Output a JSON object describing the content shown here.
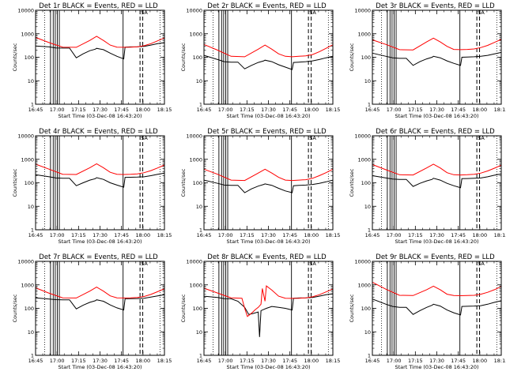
{
  "chart_data": {
    "type": "line",
    "layout": "3x3 grid",
    "x_tick_labels": [
      "16:45",
      "17:00",
      "17:15",
      "17:30",
      "17:45",
      "18:00",
      "18:15"
    ],
    "y_tick_labels": [
      "1",
      "10",
      "100",
      "1000",
      "10000"
    ],
    "x_range_minutes": [
      0,
      95
    ],
    "y_range": [
      1,
      10000
    ],
    "y_scale": "log",
    "ylabel": "Counts/sec",
    "xlabel": "Start Time (03-Dec-08 16:43:20)",
    "legend": [
      {
        "label": "BLACK = Events",
        "color": "#000000"
      },
      {
        "label": "RED = LLD",
        "color": "#ff0000"
      }
    ],
    "marker_label": "SA",
    "dotted_verticals_min": [
      6.7,
      91.7
    ],
    "solid_verticals_min": [
      11.0,
      13.0,
      14.5,
      16.0,
      17.5,
      64.5
    ],
    "dashed_verticals_min": [
      77.0,
      79.0
    ],
    "panels": [
      {
        "title": "Det 1r BLACK = Events, RED = LLD",
        "series": [
          {
            "name": "Events",
            "color": "#000000",
            "x": [
              0,
              10,
              15,
              20,
              25,
              30,
              35,
              40,
              44,
              45,
              50,
              55,
              60,
              65,
              66,
              70,
              75,
              80,
              85,
              90,
              95
            ],
            "y": [
              300,
              275,
              250,
              245,
              245,
              95,
              140,
              190,
              220,
              240,
              210,
              150,
              110,
              85,
              270,
              275,
              280,
              290,
              330,
              380,
              420
            ]
          },
          {
            "name": "LLD",
            "color": "#ff0000",
            "x": [
              0,
              10,
              20,
              30,
              40,
              45,
              50,
              55,
              60,
              65,
              70,
              75,
              80,
              85,
              90,
              95
            ],
            "y": [
              700,
              420,
              270,
              265,
              520,
              780,
              520,
              330,
              270,
              265,
              270,
              280,
              310,
              380,
              500,
              660
            ]
          }
        ]
      },
      {
        "title": "Det 2r BLACK = Events, RED = LLD",
        "series": [
          {
            "name": "Events",
            "color": "#000000",
            "x": [
              0,
              10,
              15,
              20,
              25,
              30,
              35,
              40,
              44,
              45,
              50,
              55,
              60,
              65,
              66,
              70,
              75,
              80,
              85,
              90,
              95
            ],
            "y": [
              120,
              80,
              65,
              62,
              62,
              32,
              45,
              60,
              70,
              75,
              65,
              48,
              38,
              30,
              60,
              62,
              65,
              70,
              80,
              95,
              110
            ]
          },
          {
            "name": "LLD",
            "color": "#ff0000",
            "x": [
              0,
              10,
              20,
              30,
              40,
              45,
              50,
              55,
              60,
              65,
              70,
              75,
              80,
              85,
              90,
              95
            ],
            "y": [
              350,
              200,
              110,
              105,
              220,
              330,
              220,
              140,
              110,
              105,
              110,
              115,
              130,
              170,
              240,
              340
            ]
          }
        ]
      },
      {
        "title": "Det 3r BLACK = Events, RED = LLD",
        "series": [
          {
            "name": "Events",
            "color": "#000000",
            "x": [
              0,
              10,
              15,
              20,
              25,
              30,
              35,
              40,
              44,
              45,
              50,
              55,
              60,
              65,
              66,
              70,
              75,
              80,
              85,
              90,
              95
            ],
            "y": [
              150,
              110,
              95,
              90,
              90,
              45,
              65,
              85,
              100,
              110,
              95,
              70,
              55,
              45,
              100,
              102,
              105,
              110,
              120,
              140,
              160
            ]
          },
          {
            "name": "LLD",
            "color": "#ff0000",
            "x": [
              0,
              10,
              20,
              30,
              40,
              45,
              50,
              55,
              60,
              65,
              70,
              75,
              80,
              85,
              90,
              95
            ],
            "y": [
              550,
              350,
              210,
              205,
              450,
              650,
              450,
              290,
              215,
              210,
              215,
              225,
              260,
              320,
              430,
              580
            ]
          }
        ]
      },
      {
        "title": "Det 4r BLACK = Events, RED = LLD",
        "series": [
          {
            "name": "Events",
            "color": "#000000",
            "x": [
              0,
              10,
              15,
              20,
              25,
              30,
              35,
              40,
              44,
              45,
              50,
              55,
              60,
              65,
              66,
              70,
              75,
              80,
              85,
              90,
              95
            ],
            "y": [
              220,
              180,
              160,
              155,
              155,
              75,
              100,
              130,
              150,
              165,
              140,
              100,
              80,
              65,
              170,
              172,
              175,
              180,
              200,
              230,
              260
            ]
          },
          {
            "name": "LLD",
            "color": "#ff0000",
            "x": [
              0,
              10,
              20,
              30,
              40,
              45,
              50,
              55,
              60,
              65,
              70,
              75,
              80,
              85,
              90,
              95
            ],
            "y": [
              620,
              380,
              230,
              225,
              440,
              640,
              440,
              280,
              230,
              225,
              230,
              240,
              270,
              330,
              430,
              570
            ]
          }
        ]
      },
      {
        "title": "Det 5r BLACK = Events, RED = LLD",
        "series": [
          {
            "name": "Events",
            "color": "#000000",
            "x": [
              0,
              10,
              15,
              20,
              25,
              30,
              35,
              40,
              44,
              45,
              50,
              55,
              60,
              65,
              66,
              70,
              75,
              80,
              85,
              90,
              95
            ],
            "y": [
              130,
              95,
              80,
              78,
              78,
              38,
              55,
              72,
              85,
              90,
              78,
              58,
              45,
              38,
              75,
              78,
              80,
              85,
              95,
              110,
              130
            ]
          },
          {
            "name": "LLD",
            "color": "#ff0000",
            "x": [
              0,
              10,
              20,
              30,
              40,
              45,
              50,
              55,
              60,
              65,
              70,
              75,
              80,
              85,
              90,
              95
            ],
            "y": [
              380,
              230,
              130,
              125,
              260,
              380,
              260,
              170,
              130,
              125,
              130,
              135,
              155,
              200,
              270,
              380
            ]
          }
        ]
      },
      {
        "title": "Det 6r BLACK = Events, RED = LLD",
        "series": [
          {
            "name": "Events",
            "color": "#000000",
            "x": [
              0,
              10,
              15,
              20,
              25,
              30,
              35,
              40,
              44,
              45,
              50,
              55,
              60,
              65,
              66,
              70,
              75,
              80,
              85,
              90,
              95
            ],
            "y": [
              200,
              160,
              145,
              140,
              140,
              70,
              95,
              120,
              140,
              155,
              130,
              95,
              75,
              62,
              150,
              152,
              155,
              160,
              180,
              210,
              240
            ]
          },
          {
            "name": "LLD",
            "color": "#ff0000",
            "x": [
              0,
              10,
              20,
              30,
              40,
              45,
              50,
              55,
              60,
              65,
              70,
              75,
              80,
              85,
              90,
              95
            ],
            "y": [
              600,
              360,
              220,
              215,
              430,
              620,
              430,
              270,
              220,
              215,
              220,
              230,
              260,
              320,
              420,
              560
            ]
          }
        ]
      },
      {
        "title": "Det 7r BLACK = Events, RED = LLD",
        "series": [
          {
            "name": "Events",
            "color": "#000000",
            "x": [
              0,
              10,
              15,
              20,
              25,
              30,
              35,
              40,
              44,
              45,
              50,
              55,
              60,
              65,
              66,
              70,
              75,
              80,
              85,
              90,
              95
            ],
            "y": [
              280,
              250,
              235,
              230,
              230,
              95,
              135,
              180,
              210,
              230,
              200,
              140,
              105,
              85,
              255,
              258,
              262,
              270,
              300,
              340,
              380
            ]
          },
          {
            "name": "LLD",
            "color": "#ff0000",
            "x": [
              0,
              10,
              20,
              30,
              40,
              45,
              50,
              55,
              60,
              65,
              70,
              75,
              80,
              85,
              90,
              95
            ],
            "y": [
              750,
              440,
              280,
              275,
              540,
              800,
              540,
              340,
              280,
              275,
              280,
              290,
              320,
              390,
              510,
              680
            ]
          }
        ]
      },
      {
        "title": "Det 8r BLACK = Events, RED = LLD",
        "series": [
          {
            "name": "Events",
            "color": "#000000",
            "x": [
              0,
              10,
              15,
              20,
              25,
              30,
              33,
              36,
              40,
              41,
              42,
              44,
              46,
              50,
              55,
              60,
              65,
              66,
              70,
              75,
              80,
              85,
              90,
              95
            ],
            "y": [
              330,
              290,
              260,
              255,
              200,
              110,
              55,
              60,
              70,
              6,
              80,
              90,
              100,
              120,
              110,
              100,
              85,
              270,
              275,
              280,
              290,
              330,
              380,
              420
            ]
          },
          {
            "name": "LLD",
            "color": "#ff0000",
            "x": [
              0,
              10,
              20,
              28,
              30,
              32,
              34,
              36,
              38,
              40,
              42,
              43,
              45,
              46,
              50,
              55,
              60,
              65,
              70,
              75,
              80,
              85,
              90,
              95
            ],
            "y": [
              720,
              450,
              280,
              270,
              100,
              45,
              55,
              70,
              90,
              110,
              150,
              700,
              200,
              900,
              600,
              330,
              270,
              265,
              270,
              280,
              310,
              380,
              500,
              660
            ]
          }
        ]
      },
      {
        "title": "Det 9r BLACK = Events, RED = LLD",
        "series": [
          {
            "name": "Events",
            "color": "#000000",
            "x": [
              0,
              10,
              15,
              20,
              25,
              30,
              35,
              40,
              44,
              45,
              50,
              55,
              60,
              65,
              66,
              70,
              75,
              80,
              85,
              90,
              95
            ],
            "y": [
              250,
              150,
              120,
              110,
              110,
              55,
              80,
              110,
              135,
              150,
              125,
              85,
              65,
              52,
              120,
              122,
              125,
              130,
              150,
              180,
              210
            ]
          },
          {
            "name": "LLD",
            "color": "#ff0000",
            "x": [
              0,
              10,
              20,
              30,
              40,
              45,
              50,
              55,
              60,
              65,
              70,
              75,
              80,
              85,
              90,
              95
            ],
            "y": [
              1300,
              650,
              360,
              350,
              620,
              880,
              620,
              400,
              350,
              345,
              350,
              360,
              400,
              480,
              620,
              850
            ]
          }
        ]
      }
    ]
  }
}
